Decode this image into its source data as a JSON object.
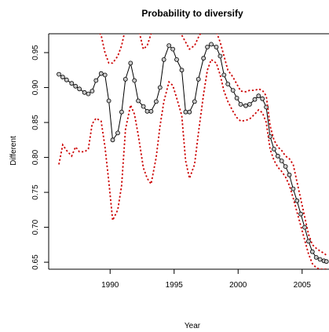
{
  "chart_data": {
    "type": "line",
    "title": "Probability to diversify",
    "xlabel": "Year",
    "ylabel": "Different",
    "xlim": [
      1985.2,
      2007.1
    ],
    "ylim": [
      0.64,
      0.977
    ],
    "x_ticks": [
      1990,
      1995,
      2000,
      2005
    ],
    "x_tick_labels": [
      "1990",
      "1995",
      "2000",
      "2005"
    ],
    "y_ticks": [
      0.65,
      0.7,
      0.75,
      0.8,
      0.85,
      0.9,
      0.95
    ],
    "y_tick_labels": [
      "0.65",
      "0.70",
      "0.75",
      "0.80",
      "0.85",
      "0.90",
      "0.95"
    ],
    "grid": false,
    "series": [
      {
        "role": "estimate",
        "style": "solid-with-circle-markers",
        "color": "#000000",
        "x": [
          1986.0,
          1986.3,
          1986.6,
          1987.0,
          1987.3,
          1987.6,
          1988.0,
          1988.3,
          1988.6,
          1988.9,
          1989.3,
          1989.6,
          1989.9,
          1990.2,
          1990.6,
          1990.9,
          1991.2,
          1991.6,
          1991.9,
          1992.2,
          1992.6,
          1992.9,
          1993.2,
          1993.6,
          1993.9,
          1994.2,
          1994.6,
          1994.9,
          1995.2,
          1995.6,
          1995.9,
          1996.2,
          1996.6,
          1996.9,
          1997.3,
          1997.6,
          1997.9,
          1998.3,
          1998.6,
          1998.9,
          1999.2,
          1999.6,
          1999.9,
          2000.2,
          2000.6,
          2000.9,
          2001.3,
          2001.6,
          2001.9,
          2002.2,
          2002.5,
          2002.8,
          2003.1,
          2003.4,
          2003.7,
          2004.0,
          2004.3,
          2004.6,
          2004.9,
          2005.2,
          2005.5,
          2005.8,
          2006.1,
          2006.4,
          2006.7,
          2006.9
        ],
        "y": [
          0.919,
          0.915,
          0.911,
          0.906,
          0.902,
          0.898,
          0.893,
          0.891,
          0.895,
          0.91,
          0.92,
          0.918,
          0.881,
          0.825,
          0.835,
          0.865,
          0.912,
          0.935,
          0.91,
          0.881,
          0.873,
          0.866,
          0.866,
          0.88,
          0.9,
          0.94,
          0.96,
          0.955,
          0.94,
          0.925,
          0.865,
          0.865,
          0.88,
          0.912,
          0.942,
          0.958,
          0.962,
          0.958,
          0.945,
          0.918,
          0.905,
          0.896,
          0.885,
          0.876,
          0.874,
          0.876,
          0.883,
          0.888,
          0.884,
          0.872,
          0.83,
          0.812,
          0.802,
          0.795,
          0.787,
          0.775,
          0.755,
          0.738,
          0.719,
          0.7,
          0.68,
          0.665,
          0.657,
          0.654,
          0.652,
          0.651
        ]
      },
      {
        "role": "upper-bound",
        "style": "dotted",
        "color": "#cc0000",
        "x": [
          1988.6,
          1988.9,
          1989.3,
          1989.6,
          1989.9,
          1990.2,
          1990.6,
          1990.9,
          1991.2,
          1991.6,
          1991.9,
          1992.2,
          1992.6,
          1992.9,
          1993.2,
          1993.6,
          1993.9,
          1994.2,
          1994.6,
          1994.9,
          1995.2,
          1995.6,
          1995.9,
          1996.2,
          1996.6,
          1996.9,
          1997.3,
          1997.6,
          1997.9,
          1998.3,
          1998.6,
          1998.9,
          1999.2,
          1999.6,
          1999.9,
          2000.2,
          2000.6,
          2000.9,
          2001.3,
          2001.6,
          2001.9,
          2002.2,
          2002.5,
          2002.8,
          2003.1,
          2003.4,
          2003.7,
          2004.0,
          2004.3,
          2004.6,
          2004.9,
          2005.2,
          2005.5,
          2005.8,
          2006.1,
          2006.4,
          2006.7,
          2006.9
        ],
        "y": [
          0.99,
          0.985,
          0.975,
          0.95,
          0.935,
          0.935,
          0.945,
          0.96,
          0.985,
          0.985,
          0.985,
          0.985,
          0.955,
          0.96,
          0.977,
          0.985,
          0.985,
          0.985,
          0.985,
          0.985,
          0.985,
          0.975,
          0.965,
          0.955,
          0.96,
          0.972,
          0.985,
          0.985,
          0.985,
          0.98,
          0.965,
          0.945,
          0.925,
          0.915,
          0.905,
          0.895,
          0.894,
          0.896,
          0.896,
          0.898,
          0.896,
          0.888,
          0.845,
          0.825,
          0.815,
          0.81,
          0.802,
          0.798,
          0.79,
          0.765,
          0.74,
          0.715,
          0.69,
          0.675,
          0.67,
          0.666,
          0.663,
          0.66
        ]
      },
      {
        "role": "lower-bound",
        "style": "dotted",
        "color": "#cc0000",
        "x": [
          1986.0,
          1986.3,
          1986.6,
          1987.0,
          1987.3,
          1987.6,
          1988.0,
          1988.3,
          1988.6,
          1988.9,
          1989.3,
          1989.6,
          1989.9,
          1990.2,
          1990.6,
          1990.9,
          1991.2,
          1991.6,
          1991.9,
          1992.2,
          1992.6,
          1992.9,
          1993.2,
          1993.6,
          1993.9,
          1994.2,
          1994.6,
          1994.9,
          1995.2,
          1995.6,
          1995.9,
          1996.2,
          1996.6,
          1996.9,
          1997.3,
          1997.6,
          1997.9,
          1998.3,
          1998.6,
          1998.9,
          1999.2,
          1999.6,
          1999.9,
          2000.2,
          2000.6,
          2000.9,
          2001.3,
          2001.6,
          2001.9,
          2002.2,
          2002.5,
          2002.8,
          2003.1,
          2003.4,
          2003.7,
          2004.0,
          2004.3,
          2004.6,
          2004.9,
          2005.2,
          2005.5,
          2005.8,
          2006.1,
          2006.4,
          2006.7,
          2006.9
        ],
        "y": [
          0.79,
          0.818,
          0.81,
          0.802,
          0.815,
          0.808,
          0.808,
          0.812,
          0.848,
          0.856,
          0.852,
          0.815,
          0.765,
          0.71,
          0.725,
          0.76,
          0.84,
          0.875,
          0.862,
          0.832,
          0.785,
          0.77,
          0.762,
          0.8,
          0.845,
          0.88,
          0.908,
          0.903,
          0.885,
          0.86,
          0.795,
          0.77,
          0.79,
          0.835,
          0.89,
          0.925,
          0.94,
          0.935,
          0.918,
          0.895,
          0.88,
          0.866,
          0.857,
          0.852,
          0.853,
          0.855,
          0.862,
          0.868,
          0.864,
          0.85,
          0.812,
          0.796,
          0.786,
          0.78,
          0.772,
          0.76,
          0.742,
          0.722,
          0.702,
          0.682,
          0.662,
          0.648,
          0.642,
          0.64,
          0.64,
          0.64
        ]
      }
    ]
  }
}
